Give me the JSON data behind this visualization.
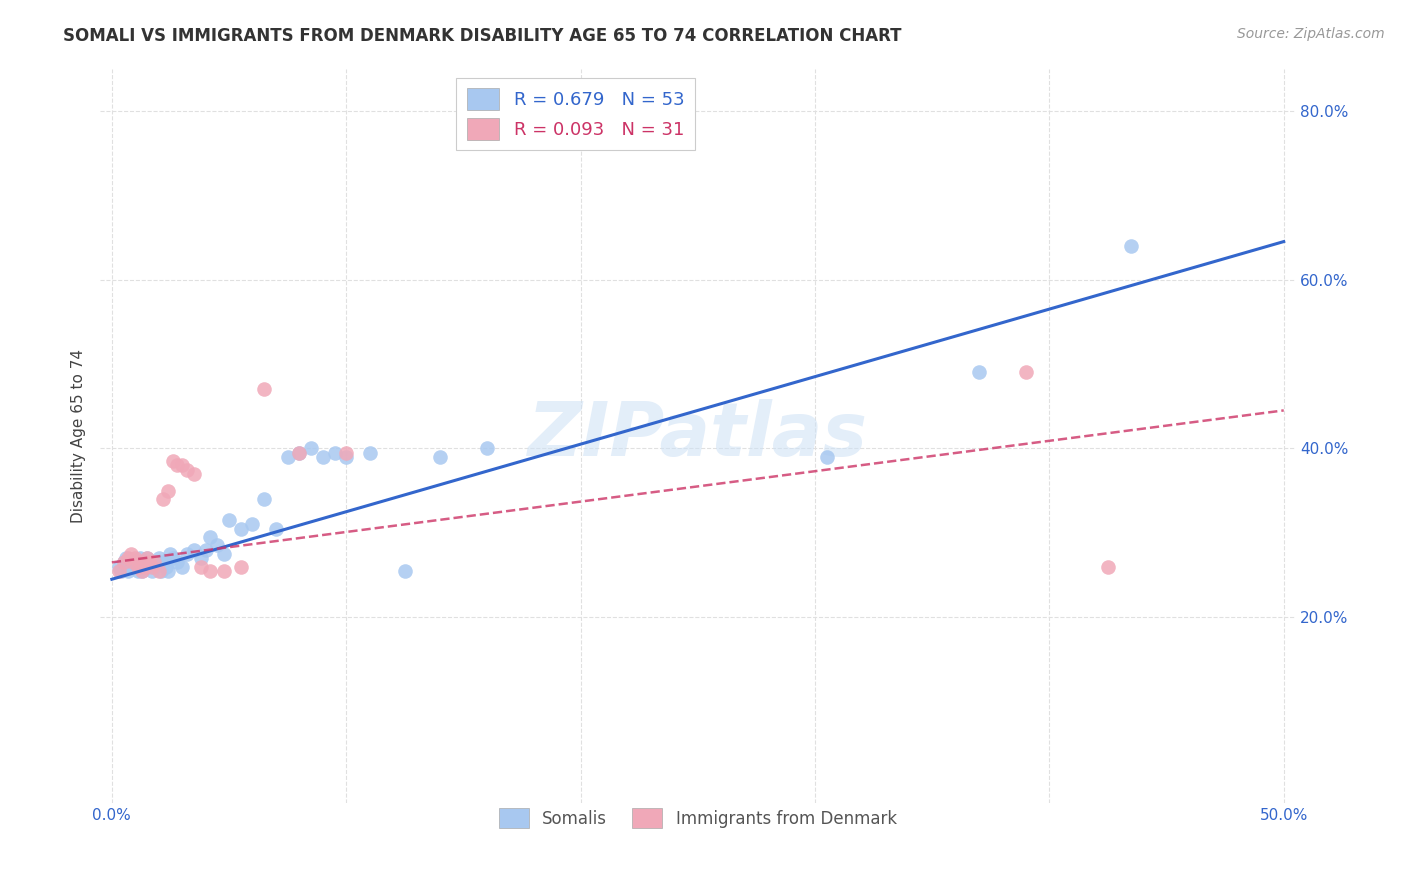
{
  "title": "SOMALI VS IMMIGRANTS FROM DENMARK DISABILITY AGE 65 TO 74 CORRELATION CHART",
  "source": "Source: ZipAtlas.com",
  "ylabel": "Disability Age 65 to 74",
  "xlim": [
    -0.005,
    0.505
  ],
  "ylim": [
    -0.02,
    0.85
  ],
  "xticks": [
    0.0,
    0.1,
    0.2,
    0.3,
    0.4,
    0.5
  ],
  "xticklabels": [
    "0.0%",
    "",
    "",
    "",
    "",
    "50.0%"
  ],
  "yticks": [
    0.2,
    0.4,
    0.6,
    0.8
  ],
  "yticklabels": [
    "20.0%",
    "40.0%",
    "60.0%",
    "80.0%"
  ],
  "somali_color": "#a8c8f0",
  "denmark_color": "#f0a8b8",
  "somali_line_color": "#3366cc",
  "denmark_line_color": "#cc3366",
  "watermark": "ZIPatlas",
  "legend_R_somali": "R = 0.679",
  "legend_N_somali": "N = 53",
  "legend_R_denmark": "R = 0.093",
  "legend_N_denmark": "N = 31",
  "somali_x": [
    0.003,
    0.004,
    0.005,
    0.006,
    0.007,
    0.008,
    0.009,
    0.01,
    0.011,
    0.012,
    0.012,
    0.013,
    0.014,
    0.015,
    0.015,
    0.016,
    0.017,
    0.018,
    0.019,
    0.02,
    0.021,
    0.022,
    0.023,
    0.024,
    0.025,
    0.026,
    0.028,
    0.03,
    0.032,
    0.035,
    0.038,
    0.04,
    0.042,
    0.045,
    0.048,
    0.05,
    0.055,
    0.06,
    0.065,
    0.07,
    0.075,
    0.08,
    0.085,
    0.09,
    0.095,
    0.1,
    0.11,
    0.125,
    0.14,
    0.16,
    0.305,
    0.37,
    0.435
  ],
  "somali_y": [
    0.26,
    0.255,
    0.265,
    0.27,
    0.255,
    0.26,
    0.265,
    0.26,
    0.255,
    0.26,
    0.27,
    0.255,
    0.265,
    0.26,
    0.27,
    0.265,
    0.255,
    0.26,
    0.265,
    0.27,
    0.255,
    0.265,
    0.26,
    0.255,
    0.275,
    0.27,
    0.265,
    0.26,
    0.275,
    0.28,
    0.27,
    0.28,
    0.295,
    0.285,
    0.275,
    0.315,
    0.305,
    0.31,
    0.34,
    0.305,
    0.39,
    0.395,
    0.4,
    0.39,
    0.395,
    0.39,
    0.395,
    0.255,
    0.39,
    0.4,
    0.39,
    0.49,
    0.64
  ],
  "denmark_x": [
    0.003,
    0.005,
    0.007,
    0.008,
    0.009,
    0.01,
    0.011,
    0.012,
    0.013,
    0.014,
    0.015,
    0.016,
    0.017,
    0.018,
    0.02,
    0.022,
    0.024,
    0.026,
    0.028,
    0.03,
    0.032,
    0.035,
    0.038,
    0.042,
    0.048,
    0.055,
    0.065,
    0.08,
    0.1,
    0.39,
    0.425
  ],
  "denmark_y": [
    0.255,
    0.265,
    0.27,
    0.275,
    0.265,
    0.27,
    0.26,
    0.265,
    0.255,
    0.26,
    0.27,
    0.265,
    0.26,
    0.265,
    0.255,
    0.34,
    0.35,
    0.385,
    0.38,
    0.38,
    0.375,
    0.37,
    0.26,
    0.255,
    0.255,
    0.26,
    0.47,
    0.395,
    0.395,
    0.49,
    0.26
  ],
  "somali_line_x": [
    0.0,
    0.5
  ],
  "somali_line_y": [
    0.245,
    0.645
  ],
  "denmark_line_x": [
    0.0,
    0.5
  ],
  "denmark_line_y": [
    0.265,
    0.445
  ],
  "background_color": "#ffffff",
  "grid_color": "#e0e0e0",
  "title_fontsize": 12,
  "tick_fontsize": 11,
  "ylabel_fontsize": 11,
  "source_fontsize": 10
}
